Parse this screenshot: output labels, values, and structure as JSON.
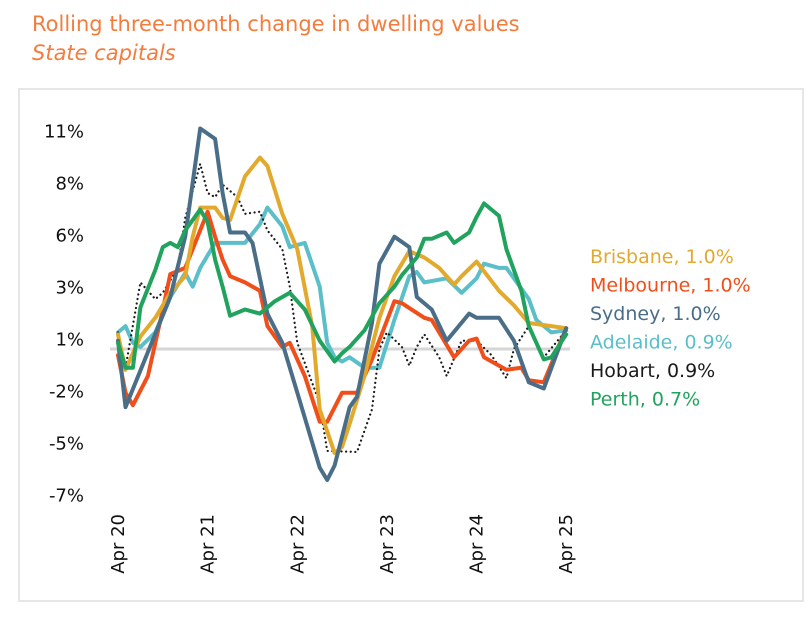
{
  "chart_data": {
    "type": "line",
    "title": "Rolling three-month change in dwelling values",
    "subtitle": "State capitals",
    "y_unit": "%",
    "ylim": [
      -7,
      11
    ],
    "y_ticks": [
      {
        "value": 10.5,
        "label": "11%"
      },
      {
        "value": 8,
        "label": "8%"
      },
      {
        "value": 5.5,
        "label": "6%"
      },
      {
        "value": 3,
        "label": "3%"
      },
      {
        "value": 0.5,
        "label": "1%"
      },
      {
        "value": -2,
        "label": "-2%"
      },
      {
        "value": -4.5,
        "label": "-5%"
      },
      {
        "value": -7,
        "label": "-7%"
      }
    ],
    "x_ticks": [
      {
        "date": "2020-04",
        "label": "Apr 20"
      },
      {
        "date": "2021-04",
        "label": "Apr 21"
      },
      {
        "date": "2022-04",
        "label": "Apr 22"
      },
      {
        "date": "2023-04",
        "label": "Apr 23"
      },
      {
        "date": "2024-04",
        "label": "Apr 24"
      },
      {
        "date": "2025-04",
        "label": "Apr 25"
      }
    ],
    "zero_line": true,
    "grid": false,
    "legend_placement": "right",
    "series": [
      {
        "name": "Brisbane",
        "legend": "Brisbane, 1.0%",
        "color": "#e3a92d",
        "style": "solid",
        "points": [
          [
            "2020-04",
            0.7
          ],
          [
            "2020-05",
            -1.0
          ],
          [
            "2020-07",
            0.6
          ],
          [
            "2020-09",
            1.5
          ],
          [
            "2020-11",
            2.7
          ],
          [
            "2021-01",
            3.5
          ],
          [
            "2021-02",
            5.4
          ],
          [
            "2021-03",
            6.8
          ],
          [
            "2021-05",
            6.8
          ],
          [
            "2021-06",
            6.3
          ],
          [
            "2021-07",
            6.2
          ],
          [
            "2021-09",
            8.3
          ],
          [
            "2021-11",
            9.2
          ],
          [
            "2021-12",
            8.8
          ],
          [
            "2022-02",
            6.5
          ],
          [
            "2022-04",
            4.8
          ],
          [
            "2022-06",
            1.1
          ],
          [
            "2022-07",
            -2.9
          ],
          [
            "2022-09",
            -5.0
          ],
          [
            "2022-10",
            -4.7
          ],
          [
            "2022-11",
            -3.6
          ],
          [
            "2023-01",
            -1.3
          ],
          [
            "2023-03",
            1.5
          ],
          [
            "2023-05",
            3.5
          ],
          [
            "2023-07",
            4.7
          ],
          [
            "2023-09",
            4.4
          ],
          [
            "2023-11",
            3.9
          ],
          [
            "2024-01",
            3.1
          ],
          [
            "2024-02",
            3.5
          ],
          [
            "2024-04",
            4.2
          ],
          [
            "2024-07",
            2.8
          ],
          [
            "2024-09",
            2.1
          ],
          [
            "2024-11",
            1.25
          ],
          [
            "2025-02",
            1.1
          ],
          [
            "2025-04",
            1.0
          ]
        ]
      },
      {
        "name": "Melbourne",
        "legend": "Melbourne, 1.0%",
        "color": "#f04e1a",
        "style": "solid",
        "points": [
          [
            "2020-04",
            -0.3
          ],
          [
            "2020-05",
            -2.1
          ],
          [
            "2020-06",
            -2.7
          ],
          [
            "2020-08",
            -1.3
          ],
          [
            "2020-10",
            1.9
          ],
          [
            "2020-11",
            3.6
          ],
          [
            "2021-01",
            3.9
          ],
          [
            "2021-04",
            6.6
          ],
          [
            "2021-05",
            5.4
          ],
          [
            "2021-06",
            4.3
          ],
          [
            "2021-07",
            3.5
          ],
          [
            "2021-09",
            3.2
          ],
          [
            "2021-11",
            2.8
          ],
          [
            "2021-12",
            1.1
          ],
          [
            "2022-02",
            0.1
          ],
          [
            "2022-03",
            0.3
          ],
          [
            "2022-05",
            -1.3
          ],
          [
            "2022-07",
            -3.5
          ],
          [
            "2022-08",
            -3.5
          ],
          [
            "2022-10",
            -2.1
          ],
          [
            "2022-12",
            -2.1
          ],
          [
            "2023-02",
            -0.5
          ],
          [
            "2023-05",
            2.3
          ],
          [
            "2023-06",
            2.2
          ],
          [
            "2023-09",
            1.5
          ],
          [
            "2023-10",
            1.4
          ],
          [
            "2024-01",
            -0.4
          ],
          [
            "2024-03",
            0.4
          ],
          [
            "2024-04",
            0.5
          ],
          [
            "2024-05",
            -0.4
          ],
          [
            "2024-08",
            -1.0
          ],
          [
            "2024-10",
            -0.9
          ],
          [
            "2024-11",
            -1.5
          ],
          [
            "2025-01",
            -1.6
          ],
          [
            "2025-04",
            1.0
          ]
        ]
      },
      {
        "name": "Sydney",
        "legend": "Sydney, 1.0%",
        "color": "#4a6e87",
        "style": "solid",
        "points": [
          [
            "2020-04",
            0.4
          ],
          [
            "2020-05",
            -2.8
          ],
          [
            "2020-11",
            2.5
          ],
          [
            "2021-01",
            5.4
          ],
          [
            "2021-03",
            10.6
          ],
          [
            "2021-05",
            10.1
          ],
          [
            "2021-06",
            7.5
          ],
          [
            "2021-07",
            5.6
          ],
          [
            "2021-09",
            5.6
          ],
          [
            "2021-10",
            5.1
          ],
          [
            "2021-12",
            1.7
          ],
          [
            "2022-02",
            0.3
          ],
          [
            "2022-04",
            -2.1
          ],
          [
            "2022-07",
            -5.7
          ],
          [
            "2022-08",
            -6.3
          ],
          [
            "2022-09",
            -5.6
          ],
          [
            "2022-11",
            -2.8
          ],
          [
            "2022-12",
            -2.3
          ],
          [
            "2023-02",
            1.25
          ],
          [
            "2023-03",
            4.1
          ],
          [
            "2023-05",
            5.4
          ],
          [
            "2023-07",
            4.9
          ],
          [
            "2023-08",
            2.5
          ],
          [
            "2023-10",
            1.9
          ],
          [
            "2023-12",
            0.4
          ],
          [
            "2024-03",
            1.7
          ],
          [
            "2024-04",
            1.5
          ],
          [
            "2024-07",
            1.5
          ],
          [
            "2024-09",
            0.4
          ],
          [
            "2024-11",
            -1.6
          ],
          [
            "2025-01",
            -1.9
          ],
          [
            "2025-04",
            1.0
          ]
        ]
      },
      {
        "name": "Adelaide",
        "legend": "Adelaide, 0.9%",
        "color": "#5bbfc9",
        "style": "solid",
        "points": [
          [
            "2020-04",
            0.8
          ],
          [
            "2020-05",
            1.1
          ],
          [
            "2020-06",
            0.3
          ],
          [
            "2020-07",
            0.1
          ],
          [
            "2020-09",
            0.8
          ],
          [
            "2020-11",
            2.5
          ],
          [
            "2021-01",
            3.65
          ],
          [
            "2021-02",
            3.0
          ],
          [
            "2021-03",
            3.9
          ],
          [
            "2021-05",
            5.1
          ],
          [
            "2021-07",
            5.1
          ],
          [
            "2021-09",
            5.1
          ],
          [
            "2021-11",
            6.0
          ],
          [
            "2021-12",
            6.8
          ],
          [
            "2022-02",
            5.9
          ],
          [
            "2022-03",
            4.9
          ],
          [
            "2022-05",
            5.1
          ],
          [
            "2022-07",
            3.0
          ],
          [
            "2022-08",
            0.3
          ],
          [
            "2022-09",
            -0.4
          ],
          [
            "2022-10",
            -0.6
          ],
          [
            "2022-11",
            -0.4
          ],
          [
            "2023-01",
            -0.9
          ],
          [
            "2023-03",
            -0.9
          ],
          [
            "2023-05",
            1.4
          ],
          [
            "2023-07",
            3.5
          ],
          [
            "2023-08",
            3.7
          ],
          [
            "2023-09",
            3.2
          ],
          [
            "2023-12",
            3.4
          ],
          [
            "2024-02",
            2.7
          ],
          [
            "2024-04",
            3.4
          ],
          [
            "2024-05",
            4.1
          ],
          [
            "2024-07",
            3.9
          ],
          [
            "2024-08",
            3.9
          ],
          [
            "2024-11",
            2.4
          ],
          [
            "2024-12",
            1.4
          ],
          [
            "2025-02",
            0.8
          ],
          [
            "2025-04",
            0.9
          ]
        ]
      },
      {
        "name": "Hobart",
        "legend": "Hobart, 0.9%",
        "color": "#1a1a1a",
        "style": "dotted",
        "points": [
          [
            "2020-04",
            0.8
          ],
          [
            "2020-05",
            -0.9
          ],
          [
            "2020-07",
            3.2
          ],
          [
            "2020-09",
            2.4
          ],
          [
            "2020-10",
            2.7
          ],
          [
            "2020-12",
            3.9
          ],
          [
            "2021-01",
            6.3
          ],
          [
            "2021-03",
            8.9
          ],
          [
            "2021-04",
            7.5
          ],
          [
            "2021-05",
            7.3
          ],
          [
            "2021-06",
            7.9
          ],
          [
            "2021-08",
            7.3
          ],
          [
            "2021-09",
            6.5
          ],
          [
            "2021-11",
            6.6
          ],
          [
            "2021-12",
            5.7
          ],
          [
            "2022-02",
            4.8
          ],
          [
            "2022-03",
            3.0
          ],
          [
            "2022-04",
            0.3
          ],
          [
            "2022-07",
            -2.6
          ],
          [
            "2022-08",
            -4.9
          ],
          [
            "2022-12",
            -4.95
          ],
          [
            "2023-02",
            -2.9
          ],
          [
            "2023-03",
            0.0
          ],
          [
            "2023-04",
            0.8
          ],
          [
            "2023-06",
            0.1
          ],
          [
            "2023-07",
            -0.8
          ],
          [
            "2023-08",
            0.1
          ],
          [
            "2023-09",
            0.7
          ],
          [
            "2023-11",
            -0.4
          ],
          [
            "2023-12",
            -1.3
          ],
          [
            "2024-02",
            0.4
          ],
          [
            "2024-04",
            0.4
          ],
          [
            "2024-06",
            -0.3
          ],
          [
            "2024-08",
            -1.4
          ],
          [
            "2024-09",
            0.0
          ],
          [
            "2024-11",
            1.1
          ],
          [
            "2025-01",
            -0.4
          ],
          [
            "2025-04",
            0.9
          ]
        ]
      },
      {
        "name": "Perth",
        "legend": "Perth, 0.7%",
        "color": "#21a35d",
        "style": "solid",
        "points": [
          [
            "2020-04",
            0.3
          ],
          [
            "2020-05",
            -0.9
          ],
          [
            "2020-06",
            -0.9
          ],
          [
            "2020-07",
            2.0
          ],
          [
            "2020-09",
            3.8
          ],
          [
            "2020-10",
            4.9
          ],
          [
            "2020-11",
            5.1
          ],
          [
            "2020-12",
            4.9
          ],
          [
            "2021-01",
            5.7
          ],
          [
            "2021-03",
            6.7
          ],
          [
            "2021-04",
            6.1
          ],
          [
            "2021-05",
            4.3
          ],
          [
            "2021-06",
            3.0
          ],
          [
            "2021-07",
            1.6
          ],
          [
            "2021-09",
            1.9
          ],
          [
            "2021-10",
            1.8
          ],
          [
            "2021-11",
            1.7
          ],
          [
            "2022-01",
            2.3
          ],
          [
            "2022-03",
            2.7
          ],
          [
            "2022-05",
            1.9
          ],
          [
            "2022-07",
            0.4
          ],
          [
            "2022-09",
            -0.6
          ],
          [
            "2022-10",
            -0.2
          ],
          [
            "2022-11",
            0.1
          ],
          [
            "2023-01",
            0.9
          ],
          [
            "2023-03",
            2.2
          ],
          [
            "2023-05",
            3.0
          ],
          [
            "2023-06",
            3.55
          ],
          [
            "2023-08",
            4.4
          ],
          [
            "2023-09",
            5.3
          ],
          [
            "2023-10",
            5.3
          ],
          [
            "2023-12",
            5.6
          ],
          [
            "2024-01",
            5.1
          ],
          [
            "2024-03",
            5.6
          ],
          [
            "2024-04",
            6.35
          ],
          [
            "2024-05",
            7.0
          ],
          [
            "2024-07",
            6.4
          ],
          [
            "2024-08",
            4.8
          ],
          [
            "2024-10",
            2.8
          ],
          [
            "2024-11",
            1.1
          ],
          [
            "2025-01",
            -0.5
          ],
          [
            "2025-02",
            -0.4
          ],
          [
            "2025-04",
            0.7
          ]
        ]
      }
    ]
  }
}
